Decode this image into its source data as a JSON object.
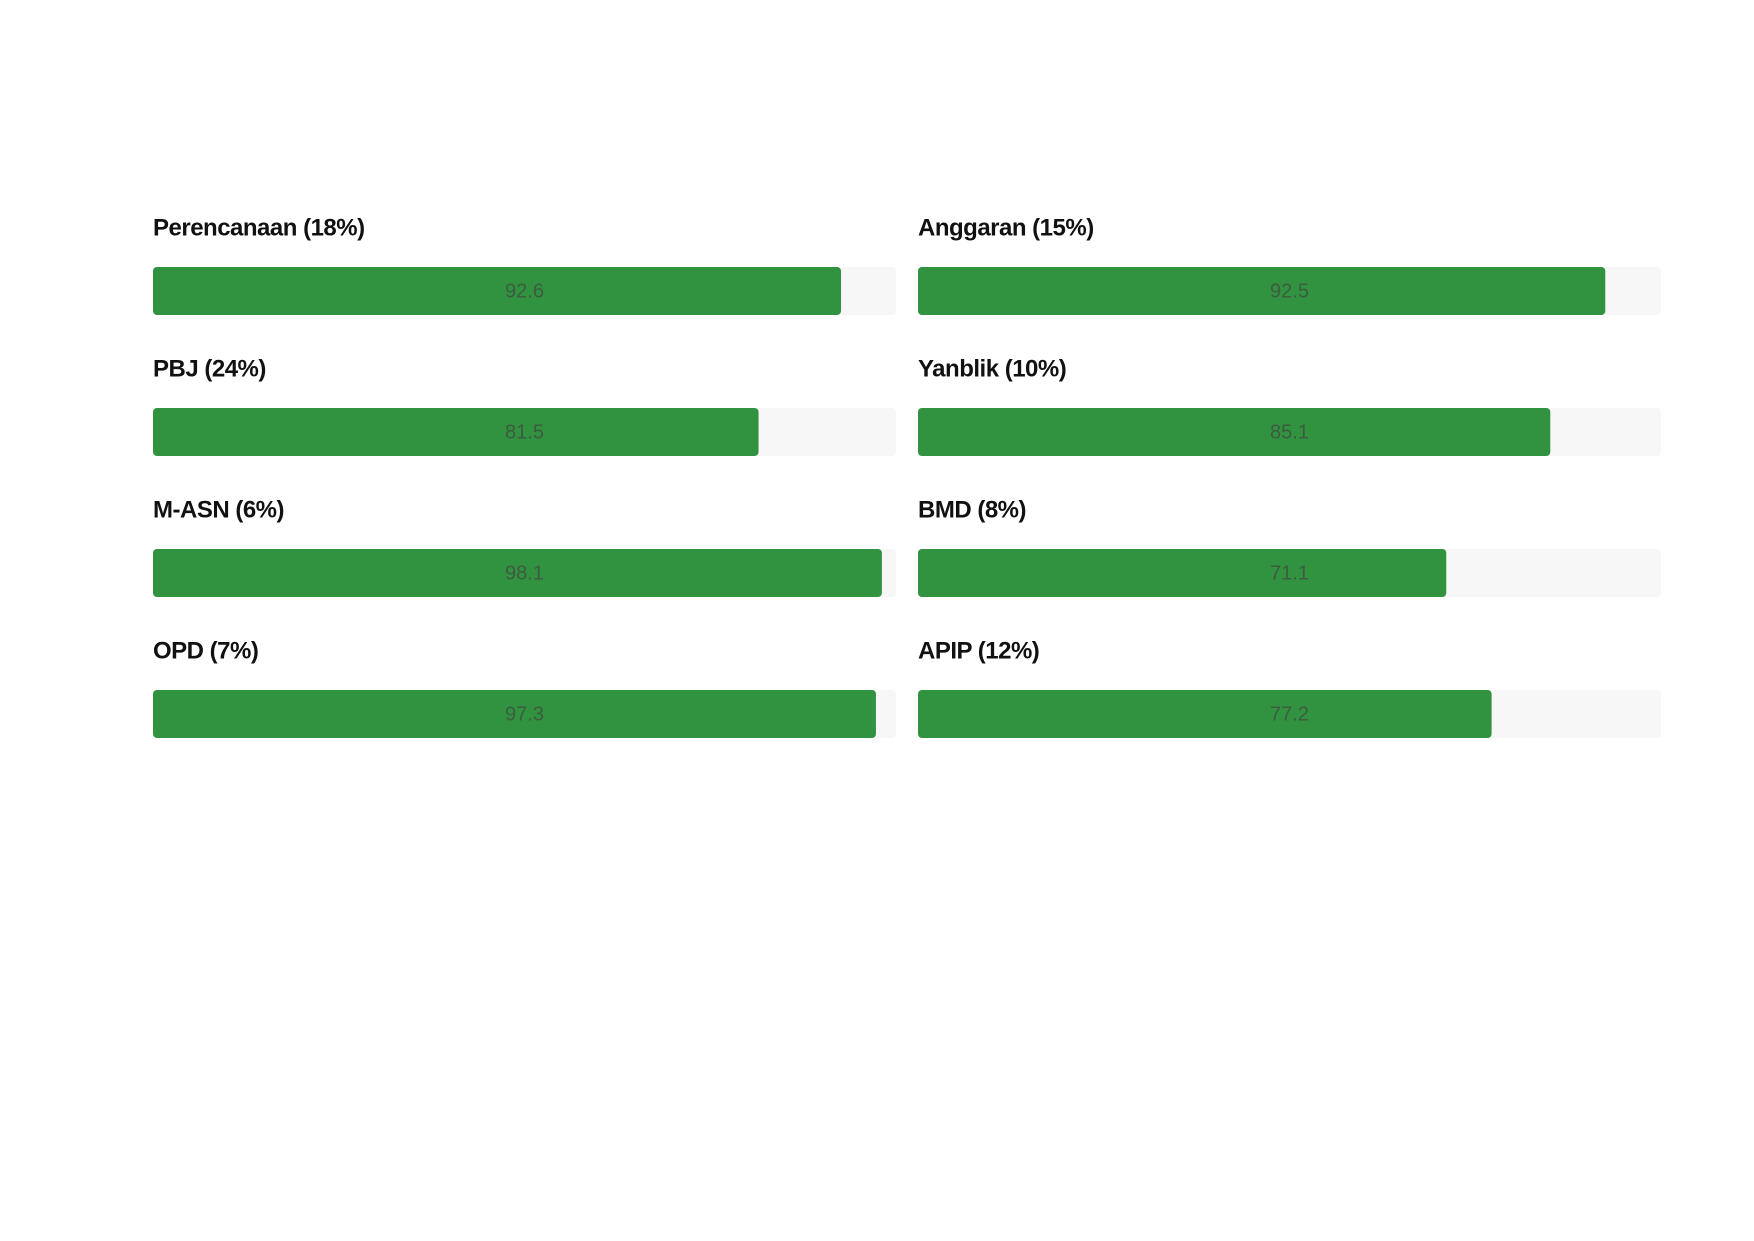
{
  "chart_data": {
    "type": "bar",
    "orientation": "horizontal",
    "categories": [
      "Perencanaan (18%)",
      "Anggaran (15%)",
      "PBJ (24%)",
      "Yanblik (10%)",
      "M-ASN (6%)",
      "BMD (8%)",
      "OPD (7%)",
      "APIP (12%)"
    ],
    "values": [
      92.6,
      92.5,
      81.5,
      85.1,
      98.1,
      71.1,
      97.3,
      77.2
    ],
    "color": "#31923f",
    "track_color": "#f7f7f7",
    "xlim": [
      0,
      100
    ]
  }
}
